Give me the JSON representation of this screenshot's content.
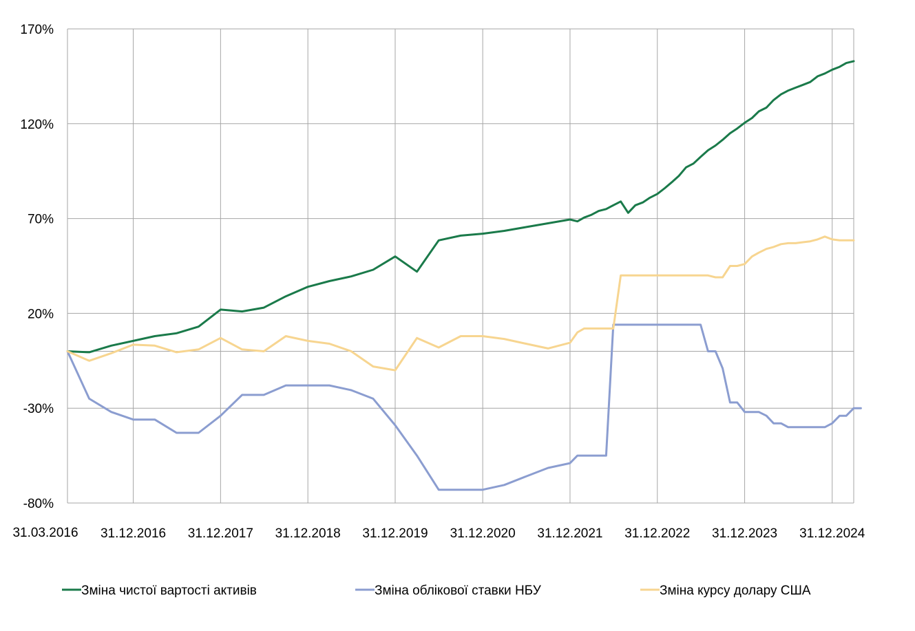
{
  "chart_data": {
    "type": "line",
    "title": "",
    "xlabel": "",
    "ylabel": "",
    "ylim": [
      -80,
      170
    ],
    "y_ticks": [
      -80,
      -30,
      20,
      70,
      120,
      170
    ],
    "y_tick_labels": [
      "-80%",
      "-30%",
      "20%",
      "70%",
      "120%",
      "170%"
    ],
    "x_range": [
      "31.03.2016",
      "31.03.2025"
    ],
    "x_ticks": [
      "31.03.2016",
      "31.12.2016",
      "31.12.2017",
      "31.12.2018",
      "31.12.2019",
      "31.12.2020",
      "31.12.2021",
      "31.12.2022",
      "31.12.2023",
      "31.12.2024"
    ],
    "x_tick_labels": [
      "31.03.2016",
      "31.12.2016",
      "31.12.2017",
      "31.12.2018",
      "31.12.2019",
      "31.12.2020",
      "31.12.2021",
      "31.12.2022",
      "31.12.2023",
      "31.12.2024"
    ],
    "grid": true,
    "legend_position": "bottom",
    "series": [
      {
        "name": "Зміна чистої вартості активів",
        "color": "#1a7a4a",
        "points": [
          [
            "31.03.2016",
            0
          ],
          [
            "30.06.2016",
            -0.5
          ],
          [
            "30.09.2016",
            3
          ],
          [
            "31.12.2016",
            5.5
          ],
          [
            "31.03.2017",
            8
          ],
          [
            "30.06.2017",
            9.5
          ],
          [
            "30.09.2017",
            13
          ],
          [
            "31.12.2017",
            22
          ],
          [
            "31.03.2018",
            21
          ],
          [
            "30.06.2018",
            23
          ],
          [
            "30.09.2018",
            29
          ],
          [
            "31.12.2018",
            34
          ],
          [
            "31.03.2019",
            37
          ],
          [
            "30.06.2019",
            39.5
          ],
          [
            "30.09.2019",
            43
          ],
          [
            "31.12.2019",
            50
          ],
          [
            "31.03.2020",
            42
          ],
          [
            "30.06.2020",
            58.5
          ],
          [
            "30.09.2020",
            61
          ],
          [
            "31.12.2020",
            62
          ],
          [
            "31.03.2021",
            63.5
          ],
          [
            "30.06.2021",
            65.5
          ],
          [
            "30.09.2021",
            67.5
          ],
          [
            "31.12.2021",
            69.5
          ],
          [
            "31.01.2022",
            68.5
          ],
          [
            "28.02.2022",
            70.5
          ],
          [
            "31.03.2022",
            72
          ],
          [
            "30.04.2022",
            74
          ],
          [
            "31.05.2022",
            75
          ],
          [
            "30.06.2022",
            77
          ],
          [
            "31.07.2022",
            79
          ],
          [
            "31.08.2022",
            73
          ],
          [
            "30.09.2022",
            77
          ],
          [
            "31.10.2022",
            78.5
          ],
          [
            "30.11.2022",
            81
          ],
          [
            "31.12.2022",
            83
          ],
          [
            "31.01.2023",
            86
          ],
          [
            "28.02.2023",
            89
          ],
          [
            "31.03.2023",
            92.5
          ],
          [
            "30.04.2023",
            97
          ],
          [
            "31.05.2023",
            99
          ],
          [
            "30.06.2023",
            102.5
          ],
          [
            "31.07.2023",
            106
          ],
          [
            "31.08.2023",
            108.5
          ],
          [
            "30.09.2023",
            111.5
          ],
          [
            "31.10.2023",
            115
          ],
          [
            "30.11.2023",
            117.5
          ],
          [
            "31.12.2023",
            120.5
          ],
          [
            "31.01.2024",
            123
          ],
          [
            "28.02.2024",
            126.5
          ],
          [
            "31.03.2024",
            128.5
          ],
          [
            "30.04.2024",
            132.5
          ],
          [
            "31.05.2024",
            135.5
          ],
          [
            "30.06.2024",
            137.5
          ],
          [
            "31.07.2024",
            139
          ],
          [
            "31.08.2024",
            140.5
          ],
          [
            "30.09.2024",
            142
          ],
          [
            "31.10.2024",
            145
          ],
          [
            "30.11.2024",
            146.5
          ],
          [
            "31.12.2024",
            148.5
          ],
          [
            "31.01.2025",
            150
          ],
          [
            "28.02.2025",
            152
          ],
          [
            "31.03.2025",
            153
          ]
        ]
      },
      {
        "name": "Зміна облікової ставки НБУ",
        "color": "#8b9dd0",
        "points": [
          [
            "31.03.2016",
            0
          ],
          [
            "30.06.2016",
            -25
          ],
          [
            "30.09.2016",
            -32
          ],
          [
            "31.12.2016",
            -36
          ],
          [
            "31.03.2017",
            -36
          ],
          [
            "30.06.2017",
            -43
          ],
          [
            "30.09.2017",
            -43
          ],
          [
            "31.12.2017",
            -34
          ],
          [
            "31.03.2018",
            -23
          ],
          [
            "30.06.2018",
            -23
          ],
          [
            "30.09.2018",
            -18
          ],
          [
            "31.12.2018",
            -18
          ],
          [
            "31.03.2019",
            -18
          ],
          [
            "30.06.2019",
            -20.5
          ],
          [
            "30.09.2019",
            -25
          ],
          [
            "31.12.2019",
            -39
          ],
          [
            "31.03.2020",
            -55
          ],
          [
            "30.06.2020",
            -73
          ],
          [
            "30.09.2020",
            -73
          ],
          [
            "31.12.2020",
            -73
          ],
          [
            "31.03.2021",
            -70.5
          ],
          [
            "30.06.2021",
            -66
          ],
          [
            "30.09.2021",
            -61.5
          ],
          [
            "31.12.2021",
            -59
          ],
          [
            "31.01.2022",
            -55
          ],
          [
            "28.02.2022",
            -55
          ],
          [
            "31.03.2022",
            -55
          ],
          [
            "30.04.2022",
            -55
          ],
          [
            "31.05.2022",
            -55
          ],
          [
            "30.06.2022",
            14
          ],
          [
            "31.07.2022",
            14
          ],
          [
            "31.08.2022",
            14
          ],
          [
            "31.12.2022",
            14
          ],
          [
            "31.03.2023",
            14
          ],
          [
            "30.06.2023",
            14
          ],
          [
            "31.07.2023",
            0
          ],
          [
            "31.08.2023",
            0
          ],
          [
            "30.09.2023",
            -9
          ],
          [
            "31.10.2023",
            -27
          ],
          [
            "30.11.2023",
            -27
          ],
          [
            "31.12.2023",
            -32
          ],
          [
            "31.01.2024",
            -32
          ],
          [
            "28.02.2024",
            -32
          ],
          [
            "31.03.2024",
            -34
          ],
          [
            "30.04.2024",
            -38
          ],
          [
            "31.05.2024",
            -38
          ],
          [
            "30.06.2024",
            -40
          ],
          [
            "31.07.2024",
            -40
          ],
          [
            "30.09.2024",
            -40
          ],
          [
            "31.10.2024",
            -40
          ],
          [
            "30.11.2024",
            -40
          ],
          [
            "31.12.2024",
            -38
          ],
          [
            "31.01.2025",
            -34
          ],
          [
            "28.02.2025",
            -34
          ],
          [
            "31.03.2025",
            -30
          ],
          [
            "30.04.2025",
            -30
          ]
        ]
      },
      {
        "name": "Зміна курсу долару США",
        "color": "#f7d590",
        "points": [
          [
            "31.03.2016",
            0
          ],
          [
            "30.06.2016",
            -5
          ],
          [
            "30.09.2016",
            -1
          ],
          [
            "31.12.2016",
            3.5
          ],
          [
            "31.03.2017",
            3
          ],
          [
            "30.06.2017",
            -0.5
          ],
          [
            "30.09.2017",
            1
          ],
          [
            "31.12.2017",
            7
          ],
          [
            "31.03.2018",
            1
          ],
          [
            "30.06.2018",
            0
          ],
          [
            "30.09.2018",
            8
          ],
          [
            "31.12.2018",
            5.5
          ],
          [
            "31.03.2019",
            4
          ],
          [
            "30.06.2019",
            0
          ],
          [
            "30.09.2019",
            -8
          ],
          [
            "31.12.2019",
            -10
          ],
          [
            "31.03.2020",
            7
          ],
          [
            "30.06.2020",
            2
          ],
          [
            "30.09.2020",
            8
          ],
          [
            "31.12.2020",
            8
          ],
          [
            "31.03.2021",
            6.5
          ],
          [
            "30.06.2021",
            4
          ],
          [
            "30.09.2021",
            1.5
          ],
          [
            "31.12.2021",
            4.5
          ],
          [
            "31.01.2022",
            10
          ],
          [
            "28.02.2022",
            12
          ],
          [
            "31.03.2022",
            12
          ],
          [
            "30.04.2022",
            12
          ],
          [
            "31.05.2022",
            12
          ],
          [
            "30.06.2022",
            12
          ],
          [
            "31.07.2022",
            40
          ],
          [
            "31.12.2022",
            40
          ],
          [
            "30.06.2023",
            40
          ],
          [
            "31.07.2023",
            40
          ],
          [
            "31.08.2023",
            39
          ],
          [
            "30.09.2023",
            39
          ],
          [
            "31.10.2023",
            45
          ],
          [
            "30.11.2023",
            45
          ],
          [
            "31.12.2023",
            46
          ],
          [
            "31.01.2024",
            50
          ],
          [
            "28.02.2024",
            52
          ],
          [
            "31.03.2024",
            54
          ],
          [
            "30.04.2024",
            55
          ],
          [
            "31.05.2024",
            56.5
          ],
          [
            "30.06.2024",
            57
          ],
          [
            "31.07.2024",
            57
          ],
          [
            "31.08.2024",
            57.5
          ],
          [
            "30.09.2024",
            58
          ],
          [
            "31.10.2024",
            59
          ],
          [
            "30.11.2024",
            60.5
          ],
          [
            "31.12.2024",
            59
          ],
          [
            "31.01.2025",
            58.5
          ],
          [
            "28.02.2025",
            58.5
          ],
          [
            "31.03.2025",
            58.5
          ]
        ]
      }
    ]
  }
}
